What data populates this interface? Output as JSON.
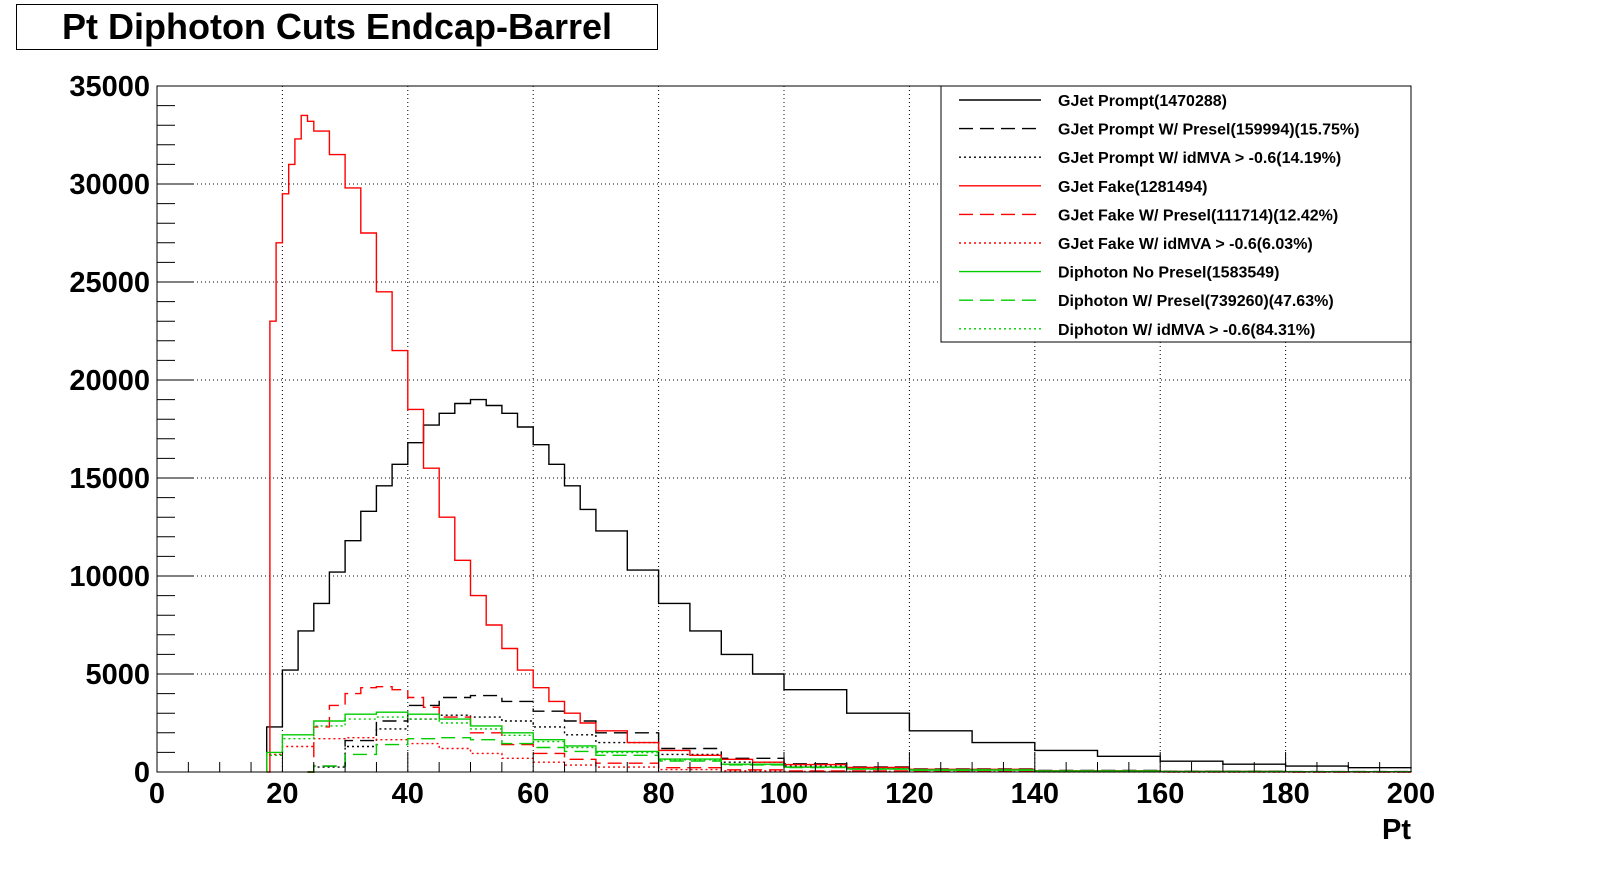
{
  "title": "Pt Diphoton Cuts Endcap-Barrel",
  "chart_data": {
    "type": "line",
    "title": "Pt Diphoton Cuts Endcap-Barrel",
    "xlabel": "Pt",
    "ylabel": "",
    "xlim": [
      0,
      200
    ],
    "ylim": [
      0,
      35000
    ],
    "x_ticks": [
      "0",
      "20",
      "40",
      "60",
      "80",
      "100",
      "120",
      "140",
      "160",
      "180",
      "200"
    ],
    "y_ticks": [
      "0",
      "5000",
      "10000",
      "15000",
      "20000",
      "25000",
      "30000",
      "35000"
    ],
    "grid": true,
    "legend_position": "top-right",
    "series": [
      {
        "name": "GJet Prompt(1470288)",
        "color": "#000000",
        "style": "solid",
        "x": [
          17.5,
          20,
          22.5,
          25,
          27.5,
          30,
          32.5,
          35,
          37.5,
          40,
          42.5,
          45,
          47.5,
          50,
          52.5,
          55,
          57.5,
          60,
          62.5,
          65,
          67.5,
          70,
          75,
          80,
          85,
          90,
          95,
          100,
          110,
          120,
          130,
          140,
          150,
          160,
          170,
          180,
          190,
          200
        ],
        "y": [
          2300,
          5200,
          7200,
          8600,
          10200,
          11800,
          13300,
          14600,
          15700,
          16800,
          17700,
          18300,
          18800,
          19000,
          18700,
          18300,
          17600,
          16700,
          15700,
          14600,
          13400,
          12300,
          10300,
          8600,
          7200,
          6000,
          5000,
          4200,
          3000,
          2100,
          1500,
          1100,
          800,
          550,
          400,
          300,
          220,
          180
        ]
      },
      {
        "name": "GJet Prompt W/ Presel(159994)(15.75%)",
        "color": "#000000",
        "style": "dashed",
        "x": [
          24,
          25,
          30,
          35,
          40,
          45,
          50,
          55,
          60,
          65,
          70,
          80,
          90,
          100,
          110,
          120,
          140,
          160,
          180,
          200
        ],
        "y": [
          0,
          300,
          1600,
          2600,
          3400,
          3800,
          3900,
          3600,
          3100,
          2600,
          2000,
          1200,
          700,
          420,
          260,
          160,
          80,
          40,
          20,
          10
        ]
      },
      {
        "name": "GJet Prompt W/ idMVA > -0.6(14.19%)",
        "color": "#000000",
        "style": "dotted",
        "x": [
          24,
          25,
          30,
          35,
          40,
          45,
          50,
          55,
          60,
          65,
          70,
          80,
          90,
          100,
          110,
          120,
          140,
          160,
          180,
          200
        ],
        "y": [
          0,
          250,
          1300,
          2200,
          2700,
          2900,
          2800,
          2600,
          2300,
          1900,
          1500,
          900,
          500,
          300,
          180,
          110,
          50,
          25,
          12,
          6
        ]
      },
      {
        "name": "GJet Fake(1281494)",
        "color": "#ff0000",
        "style": "solid",
        "x": [
          17.5,
          18,
          19,
          20,
          21,
          22,
          23,
          24,
          25,
          27.5,
          30,
          32.5,
          35,
          37.5,
          40,
          42.5,
          45,
          47.5,
          50,
          52.5,
          55,
          57.5,
          60,
          62.5,
          65,
          67.5,
          70,
          75,
          80,
          85,
          90,
          95,
          100,
          110,
          120,
          140,
          160,
          180,
          200
        ],
        "y": [
          0,
          23000,
          27000,
          29500,
          31000,
          32300,
          33500,
          33200,
          32700,
          31500,
          29800,
          27500,
          24500,
          21500,
          18500,
          15500,
          13000,
          10800,
          9000,
          7500,
          6300,
          5200,
          4300,
          3600,
          3000,
          2500,
          2100,
          1500,
          1100,
          850,
          650,
          500,
          380,
          230,
          140,
          60,
          25,
          12,
          5
        ]
      },
      {
        "name": "GJet Fake W/ Presel(111714)(12.42%)",
        "color": "#ff0000",
        "style": "dashed",
        "x": [
          24,
          25,
          27.5,
          30,
          32.5,
          35,
          37.5,
          40,
          42.5,
          45,
          50,
          55,
          60,
          65,
          70,
          80,
          90,
          100,
          120,
          140,
          160,
          180,
          200
        ],
        "y": [
          0,
          2300,
          3400,
          4000,
          4300,
          4350,
          4200,
          3800,
          3300,
          2800,
          2000,
          1400,
          950,
          650,
          450,
          220,
          110,
          55,
          20,
          8,
          3,
          1,
          0
        ]
      },
      {
        "name": "GJet Fake W/ idMVA > -0.6(6.03%)",
        "color": "#ff0000",
        "style": "dotted",
        "x": [
          17.5,
          20,
          25,
          30,
          35,
          40,
          45,
          50,
          55,
          60,
          65,
          70,
          80,
          90,
          100,
          120,
          140,
          160,
          180,
          200
        ],
        "y": [
          900,
          1300,
          1700,
          1750,
          1650,
          1450,
          1200,
          950,
          700,
          500,
          350,
          250,
          120,
          60,
          30,
          10,
          4,
          2,
          1,
          0
        ]
      },
      {
        "name": "Diphoton No Presel(1583549)",
        "color": "#00cc00",
        "style": "solid",
        "x": [
          17.5,
          20,
          25,
          30,
          35,
          40,
          45,
          50,
          55,
          60,
          65,
          70,
          80,
          90,
          100,
          110,
          120,
          140,
          160,
          180,
          200
        ],
        "y": [
          1000,
          1900,
          2600,
          2950,
          3050,
          2950,
          2700,
          2350,
          2000,
          1650,
          1330,
          1050,
          660,
          400,
          250,
          160,
          100,
          45,
          20,
          10,
          5
        ]
      },
      {
        "name": "Diphoton W/ Presel(739260)(47.63%)",
        "color": "#00cc00",
        "style": "dashed",
        "x": [
          24,
          25,
          30,
          35,
          40,
          45,
          50,
          55,
          60,
          65,
          70,
          80,
          90,
          100,
          110,
          120,
          140,
          160,
          180,
          200
        ],
        "y": [
          0,
          300,
          900,
          1400,
          1700,
          1750,
          1650,
          1450,
          1250,
          1050,
          850,
          560,
          360,
          230,
          150,
          100,
          45,
          20,
          10,
          5
        ]
      },
      {
        "name": "Diphoton W/ idMVA > -0.6(84.31%)",
        "color": "#00cc00",
        "style": "dotted",
        "x": [
          17.5,
          20,
          25,
          30,
          35,
          40,
          45,
          50,
          55,
          60,
          65,
          70,
          80,
          90,
          100,
          110,
          120,
          140,
          160,
          180,
          200
        ],
        "y": [
          850,
          1700,
          2350,
          2700,
          2800,
          2700,
          2500,
          2200,
          1870,
          1550,
          1250,
          990,
          620,
          380,
          240,
          150,
          95,
          42,
          19,
          9,
          4
        ]
      }
    ]
  }
}
